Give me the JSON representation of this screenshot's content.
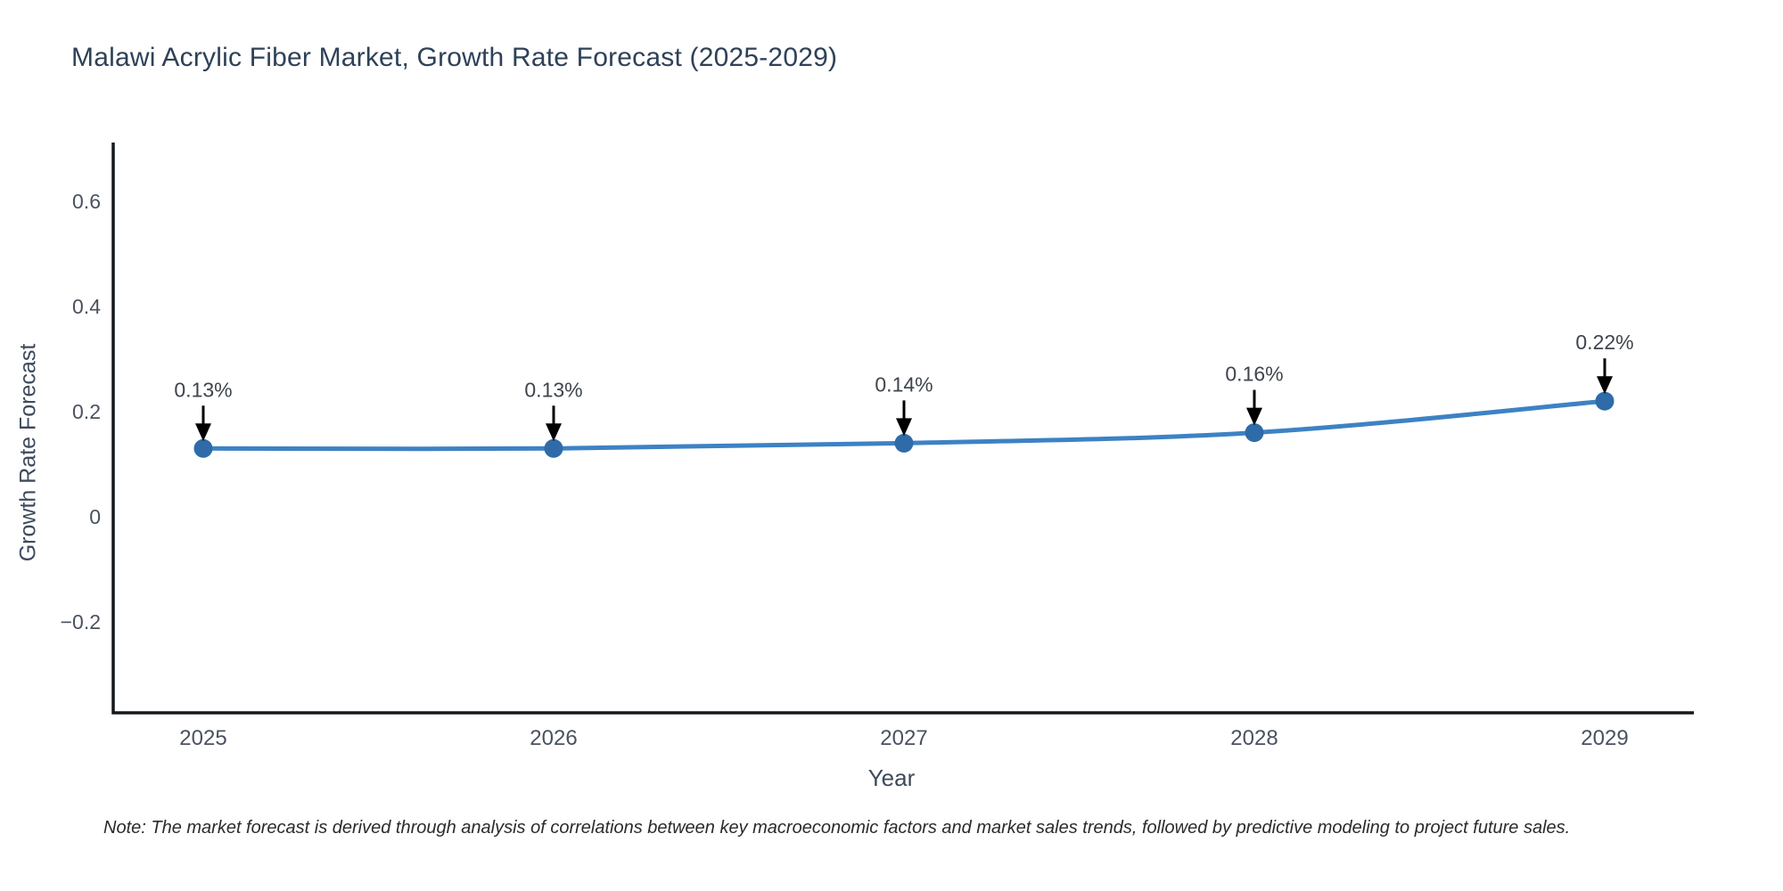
{
  "title": "Malawi Acrylic Fiber Market, Growth Rate Forecast (2025-2029)",
  "note": "Note: The market forecast is derived through analysis of correlations between key macroeconomic factors and market sales trends, followed by predictive modeling to project future sales.",
  "chart_data": {
    "type": "line",
    "title": "Malawi Acrylic Fiber Market, Growth Rate Forecast (2025-2029)",
    "xlabel": "Year",
    "ylabel": "Growth Rate Forecast",
    "x": [
      2025,
      2026,
      2027,
      2028,
      2029
    ],
    "values": [
      0.13,
      0.13,
      0.14,
      0.16,
      0.22
    ],
    "point_labels": [
      "0.13%",
      "0.13%",
      "0.14%",
      "0.16%",
      "0.22%"
    ],
    "yticks": [
      -0.2,
      0,
      0.2,
      0.4,
      0.6
    ],
    "ytick_labels": [
      "−0.2",
      "0",
      "0.2",
      "0.4",
      "0.6"
    ],
    "xtick_labels": [
      "2025",
      "2026",
      "2027",
      "2028",
      "2029"
    ],
    "ylim": [
      -0.37,
      0.71
    ],
    "xlim": [
      2024.74,
      2029.25
    ],
    "grid": false,
    "legend": "none",
    "line_color": "#3d82c4",
    "marker_color": "#2f6ba8",
    "axis_color": "#15181d",
    "tick_label_color": "#4a5260",
    "annotation_text_color": "#3f454d",
    "annotation_arrow_color": "#000000"
  }
}
